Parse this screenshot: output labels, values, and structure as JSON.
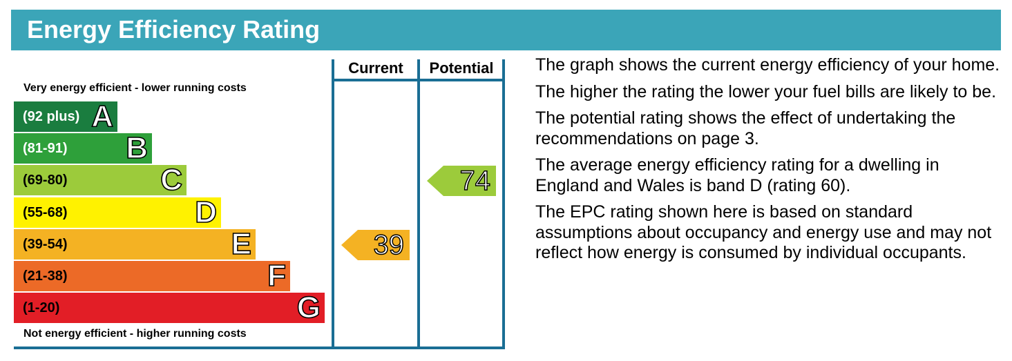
{
  "header": {
    "title": "Energy Efficiency Rating"
  },
  "chart": {
    "top_caption": "Very energy efficient - lower running costs",
    "bottom_caption": "Not energy efficient - higher running costs",
    "column_labels": {
      "current": "Current",
      "potential": "Potential"
    },
    "frame_color": "#1a6e94"
  },
  "chart_data": {
    "type": "bar",
    "bands": [
      {
        "letter": "A",
        "range": "(92 plus)",
        "color": "#1a7d3f",
        "text_color": "#ffffff"
      },
      {
        "letter": "B",
        "range": "(81-91)",
        "color": "#2ea03a",
        "text_color": "#ffffff"
      },
      {
        "letter": "C",
        "range": "(69-80)",
        "color": "#9ccb3b",
        "text_color": "#000000"
      },
      {
        "letter": "D",
        "range": "(55-68)",
        "color": "#fff200",
        "text_color": "#000000"
      },
      {
        "letter": "E",
        "range": "(39-54)",
        "color": "#f4b223",
        "text_color": "#000000"
      },
      {
        "letter": "F",
        "range": "(21-38)",
        "color": "#ec6a27",
        "text_color": "#000000"
      },
      {
        "letter": "G",
        "range": "(1-20)",
        "color": "#e21e26",
        "text_color": "#000000"
      }
    ],
    "current": {
      "value": 39,
      "band": "E",
      "color": "#f4b223"
    },
    "potential": {
      "value": 74,
      "band": "C",
      "color": "#9ccb3b"
    }
  },
  "info": {
    "paragraphs": [
      "The graph shows the current energy efficiency of your home.",
      "The higher the rating the lower your fuel bills are likely to be.",
      "The potential rating shows the effect of undertaking the recommendations on page 3.",
      "The average energy efficiency rating for a dwelling in England and Wales is band D (rating 60).",
      "The EPC rating shown here is based on standard assumptions about occupancy and energy use and may not reflect how energy is consumed by individual occupants."
    ]
  }
}
